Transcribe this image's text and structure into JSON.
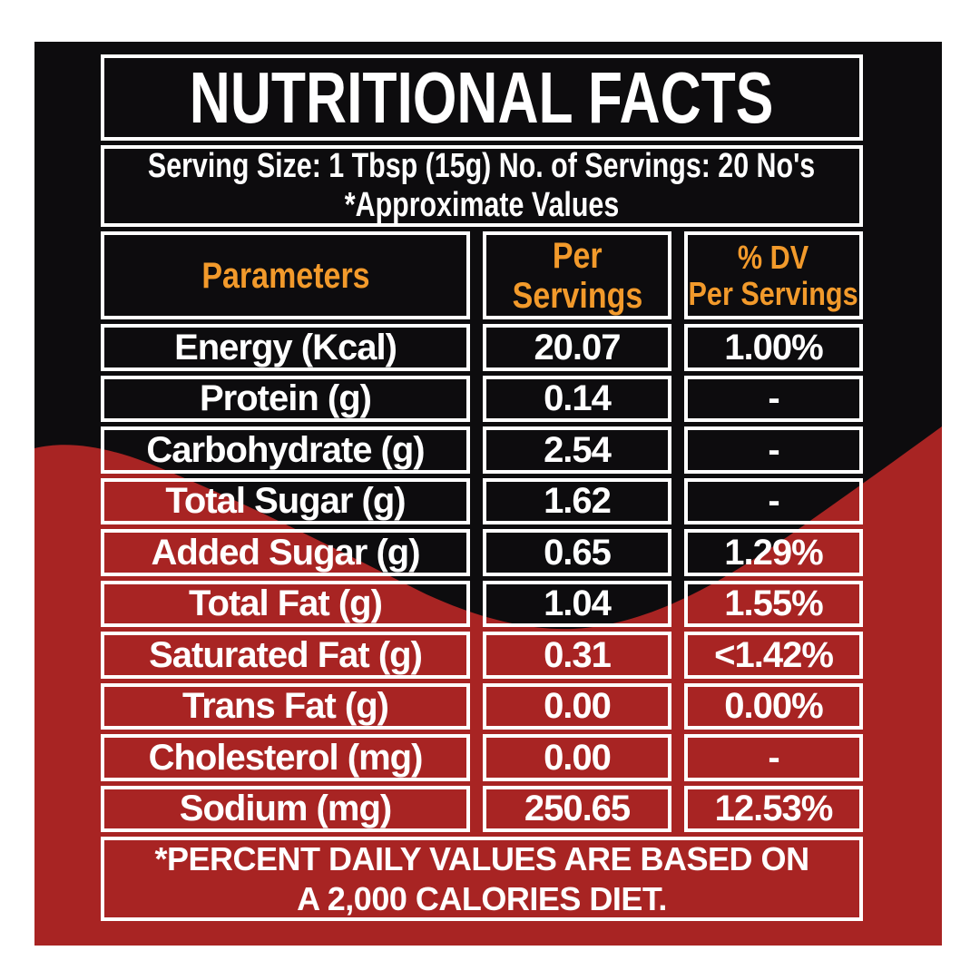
{
  "colors": {
    "page_background": "#FFFFFF",
    "panel_black": "#0D0C0E",
    "wave_red": "#A82423",
    "border_white": "#FFFFFF",
    "header_orange": "#F29A2B",
    "text_white": "#FFFFFF"
  },
  "title": "NUTRITIONAL FACTS",
  "serving": {
    "line1": "Serving Size: 1 Tbsp (15g) No. of Servings: 20 No's",
    "line2": "*Approximate Values"
  },
  "table": {
    "header": {
      "parameters": "Parameters",
      "per_servings": [
        "Per",
        "Servings"
      ],
      "dv": [
        "% DV",
        "Per Servings"
      ]
    },
    "rows": [
      {
        "parameter": "Energy (Kcal)",
        "per_serving": "20.07",
        "dv": "1.00%"
      },
      {
        "parameter": "Protein (g)",
        "per_serving": "0.14",
        "dv": "-"
      },
      {
        "parameter": "Carbohydrate (g)",
        "per_serving": "2.54",
        "dv": "-"
      },
      {
        "parameter": "Total Sugar (g)",
        "per_serving": "1.62",
        "dv": "-"
      },
      {
        "parameter": "Added Sugar (g)",
        "per_serving": "0.65",
        "dv": "1.29%"
      },
      {
        "parameter": "Total Fat (g)",
        "per_serving": "1.04",
        "dv": "1.55%"
      },
      {
        "parameter": "Saturated Fat (g)",
        "per_serving": "0.31",
        "dv": "<1.42%"
      },
      {
        "parameter": "Trans Fat (g)",
        "per_serving": "0.00",
        "dv": "0.00%"
      },
      {
        "parameter": "Cholesterol (mg)",
        "per_serving": "0.00",
        "dv": "-"
      },
      {
        "parameter": "Sodium (mg)",
        "per_serving": "250.65",
        "dv": "12.53%"
      }
    ]
  },
  "footnote": {
    "line1": "*PERCENT DAILY VALUES ARE BASED ON",
    "line2": "A 2,000 CALORIES DIET."
  }
}
